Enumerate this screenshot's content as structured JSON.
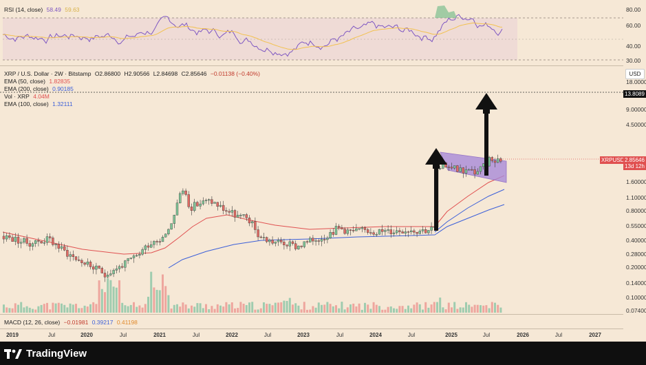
{
  "app": {
    "brand": "TradingView",
    "currency": "USD"
  },
  "rsi": {
    "label": "RSI (14, close)",
    "value": "58.49",
    "ma_value": "59.63",
    "axis": [
      "80.00",
      "60.00",
      "40.00",
      "30.00"
    ],
    "ma_color": "#f2c14e",
    "line_color": "#7e57c2"
  },
  "main": {
    "symbol_line": "XRP / U.S. Dollar · 2W · Bitstamp",
    "ohlc": {
      "o": "O2.86800",
      "h": "H2.90566",
      "l": "L2.84698",
      "c": "C2.85646",
      "chg": "−0.01138 (−0.40%)"
    },
    "ema50": {
      "label": "EMA (50, close)",
      "value": "1.82835",
      "color": "#e05050"
    },
    "ema200": {
      "label": "EMA (200, close)",
      "value": "0.90185",
      "color": "#3b5fd9"
    },
    "vol": {
      "label": "Vol · XRP",
      "value": "4.04M"
    },
    "ema100": {
      "label": "EMA (100, close)",
      "value": "1.32111",
      "color": "#3b5fd9"
    },
    "axis": [
      "18.0000",
      "9.00000",
      "4.50000",
      "2.20000",
      "1.60000",
      "1.10000",
      "0.80000",
      "0.55000",
      "0.40000",
      "0.28000",
      "0.20000",
      "0.14000",
      "0.10000",
      "0.07400"
    ],
    "level_label": "13.8089",
    "price_badge": {
      "symbol": "XRPUSD",
      "price": "2.85646",
      "countdown": "13d 12h"
    }
  },
  "macd": {
    "label": "MACD (12, 26, close)",
    "v1": "−0.01981",
    "v2": "0.39217",
    "v3": "0.41198"
  },
  "time_axis": [
    "2019",
    "Jul",
    "2020",
    "Jul",
    "2021",
    "Jul",
    "2022",
    "Jul",
    "2023",
    "Jul",
    "2024",
    "Jul",
    "2025",
    "Jul",
    "2026",
    "Jul",
    "2027"
  ],
  "chart_data": {
    "type": "candlestick",
    "title": "XRP / U.S. Dollar · 2W · Bitstamp",
    "scale": "log",
    "ylim": [
      0.074,
      18
    ],
    "x_range": [
      "2019-01",
      "2027-03"
    ],
    "grid": false,
    "series": [
      {
        "name": "EMA (50, close)",
        "values_approx": [
          0.55,
          0.45,
          0.36,
          0.3,
          0.28,
          0.3,
          0.35,
          0.55,
          0.85,
          0.8,
          0.62,
          0.55,
          0.5,
          0.5,
          0.52,
          0.6,
          1.1,
          1.6,
          1.83
        ]
      },
      {
        "name": "EMA (100, close)",
        "values_approx": [
          0.22,
          0.3,
          0.38,
          0.45,
          0.5,
          0.5,
          0.52,
          0.55,
          0.8,
          1.1,
          1.32
        ]
      },
      {
        "name": "EMA (200, close)",
        "values_approx": [
          0.2,
          0.3,
          0.35,
          0.4,
          0.42,
          0.45,
          0.46,
          0.5,
          0.7,
          0.9
        ]
      }
    ],
    "annotations": {
      "resistance_level": 13.8089,
      "last_close": 2.85646,
      "flag_channel": [
        2.0,
        3.5
      ]
    }
  }
}
